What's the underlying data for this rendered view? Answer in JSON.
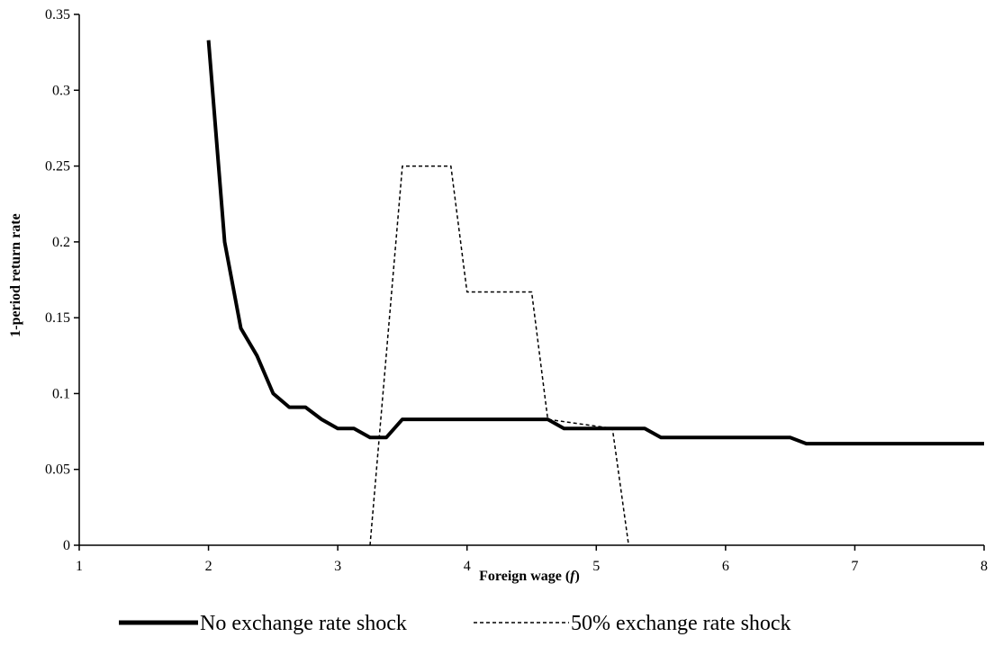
{
  "chart_data": {
    "type": "line",
    "title": "",
    "xlabel": "Foreign wage (",
    "xlabel_var": "f",
    "xlabel_close": ")",
    "ylabel": "1-period return rate",
    "xlim": [
      1,
      8
    ],
    "ylim": [
      0,
      0.35
    ],
    "xticks": [
      1,
      2,
      3,
      4,
      5,
      6,
      7,
      8
    ],
    "xtick_labels": [
      "1",
      "2",
      "3",
      "4",
      "5",
      "6",
      "7",
      "8"
    ],
    "yticks": [
      0,
      0.05,
      0.1,
      0.15,
      0.2,
      0.25,
      0.3,
      0.35
    ],
    "ytick_labels": [
      "0",
      "0.05",
      "0.1",
      "0.15",
      "0.2",
      "0.25",
      "0.3",
      "0.35"
    ],
    "grid": false,
    "legend_position": "bottom",
    "series": [
      {
        "name": "No exchange rate shock",
        "style": "solid",
        "color": "#000000",
        "x": [
          2,
          2.125,
          2.25,
          2.375,
          2.5,
          2.625,
          2.75,
          2.875,
          3,
          3.125,
          3.25,
          3.375,
          3.5,
          3.625,
          3.75,
          3.875,
          4,
          4.125,
          4.25,
          4.375,
          4.5,
          4.625,
          4.75,
          4.875,
          5,
          5.125,
          5.25,
          5.375,
          5.5,
          5.625,
          5.75,
          5.875,
          6,
          6.125,
          6.25,
          6.375,
          6.5,
          6.625,
          6.75,
          6.875,
          7,
          7.125,
          7.25,
          7.375,
          7.5,
          7.625,
          7.75,
          7.875,
          8
        ],
        "y": [
          0.333,
          0.2,
          0.143,
          0.125,
          0.1,
          0.091,
          0.091,
          0.083,
          0.077,
          0.077,
          0.071,
          0.071,
          0.083,
          0.083,
          0.083,
          0.083,
          0.083,
          0.083,
          0.083,
          0.083,
          0.083,
          0.083,
          0.077,
          0.077,
          0.077,
          0.077,
          0.077,
          0.077,
          0.071,
          0.071,
          0.071,
          0.071,
          0.071,
          0.071,
          0.071,
          0.071,
          0.071,
          0.067,
          0.067,
          0.067,
          0.067,
          0.067,
          0.067,
          0.067,
          0.067,
          0.067,
          0.067,
          0.067,
          0.067
        ]
      },
      {
        "name": "50% exchange rate shock",
        "style": "dashed",
        "color": "#000000",
        "x": [
          3.25,
          3.5,
          3.875,
          4,
          4.5,
          4.625,
          5.125,
          5.25
        ],
        "y": [
          0,
          0.25,
          0.25,
          0.167,
          0.167,
          0.083,
          0.077,
          0
        ]
      }
    ]
  }
}
